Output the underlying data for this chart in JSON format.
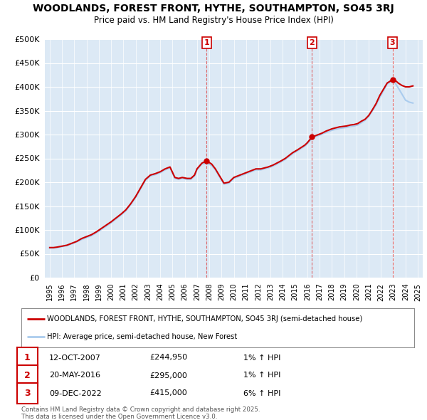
{
  "title": "WOODLANDS, FOREST FRONT, HYTHE, SOUTHAMPTON, SO45 3RJ",
  "subtitle": "Price paid vs. HM Land Registry's House Price Index (HPI)",
  "ylim": [
    0,
    500000
  ],
  "yticks": [
    0,
    50000,
    100000,
    150000,
    200000,
    250000,
    300000,
    350000,
    400000,
    450000,
    500000
  ],
  "xlim_start": 1994.6,
  "xlim_end": 2025.4,
  "background_color": "#dce9f5",
  "grid_color": "#ffffff",
  "sale_points": [
    {
      "label": "1",
      "year": 2007.79,
      "price": 244950,
      "date": "12-OCT-2007",
      "hpi_pct": "1%"
    },
    {
      "label": "2",
      "year": 2016.38,
      "price": 295000,
      "date": "20-MAY-2016",
      "hpi_pct": "1%"
    },
    {
      "label": "3",
      "year": 2022.94,
      "price": 415000,
      "date": "09-DEC-2022",
      "hpi_pct": "6%"
    }
  ],
  "red_line_color": "#cc0000",
  "blue_line_color": "#aaccee",
  "dashed_line_color": "#dd4444",
  "legend_label_red": "WOODLANDS, FOREST FRONT, HYTHE, SOUTHAMPTON, SO45 3RJ (semi-detached house)",
  "legend_label_blue": "HPI: Average price, semi-detached house, New Forest",
  "footer": "Contains HM Land Registry data © Crown copyright and database right 2025.\nThis data is licensed under the Open Government Licence v3.0.",
  "red_data_x": [
    1995.0,
    1995.3,
    1995.6,
    1996.0,
    1996.4,
    1996.8,
    1997.2,
    1997.6,
    1998.0,
    1998.4,
    1998.8,
    1999.2,
    1999.6,
    2000.0,
    2000.4,
    2000.8,
    2001.2,
    2001.6,
    2002.0,
    2002.4,
    2002.8,
    2003.2,
    2003.6,
    2004.0,
    2004.4,
    2004.8,
    2005.2,
    2005.5,
    2005.8,
    2006.2,
    2006.5,
    2006.8,
    2007.0,
    2007.4,
    2007.79,
    2008.2,
    2008.5,
    2008.8,
    2009.2,
    2009.6,
    2010.0,
    2010.4,
    2010.8,
    2011.2,
    2011.5,
    2011.8,
    2012.2,
    2012.5,
    2012.8,
    2013.2,
    2013.5,
    2013.8,
    2014.2,
    2014.5,
    2014.8,
    2015.2,
    2015.5,
    2015.8,
    2016.0,
    2016.38,
    2016.6,
    2016.9,
    2017.2,
    2017.5,
    2017.8,
    2018.0,
    2018.3,
    2018.6,
    2018.9,
    2019.2,
    2019.5,
    2019.8,
    2020.1,
    2020.4,
    2020.7,
    2021.0,
    2021.3,
    2021.6,
    2021.9,
    2022.2,
    2022.5,
    2022.94,
    2023.1,
    2023.4,
    2023.7,
    2024.0,
    2024.3,
    2024.6
  ],
  "red_data_y": [
    63000,
    63000,
    64000,
    66000,
    68000,
    72000,
    76000,
    82000,
    86000,
    90000,
    96000,
    103000,
    110000,
    117000,
    125000,
    133000,
    142000,
    155000,
    170000,
    188000,
    206000,
    215000,
    218000,
    222000,
    228000,
    232000,
    210000,
    208000,
    210000,
    208000,
    208000,
    215000,
    228000,
    240000,
    244950,
    238000,
    228000,
    215000,
    198000,
    200000,
    210000,
    214000,
    218000,
    222000,
    225000,
    228000,
    228000,
    230000,
    232000,
    236000,
    240000,
    244000,
    250000,
    256000,
    262000,
    268000,
    273000,
    278000,
    283000,
    295000,
    297000,
    300000,
    303000,
    307000,
    310000,
    312000,
    314000,
    316000,
    317000,
    318000,
    320000,
    321000,
    323000,
    328000,
    332000,
    340000,
    352000,
    365000,
    382000,
    395000,
    408000,
    415000,
    415000,
    408000,
    403000,
    400000,
    400000,
    402000
  ],
  "blue_data_x": [
    1995.0,
    1995.3,
    1995.6,
    1996.0,
    1996.4,
    1996.8,
    1997.2,
    1997.6,
    1998.0,
    1998.4,
    1998.8,
    1999.2,
    1999.6,
    2000.0,
    2000.4,
    2000.8,
    2001.2,
    2001.6,
    2002.0,
    2002.4,
    2002.8,
    2003.2,
    2003.6,
    2004.0,
    2004.4,
    2004.8,
    2005.2,
    2005.5,
    2005.8,
    2006.2,
    2006.5,
    2006.8,
    2007.0,
    2007.4,
    2007.8,
    2008.2,
    2008.5,
    2008.8,
    2009.2,
    2009.6,
    2010.0,
    2010.4,
    2010.8,
    2011.2,
    2011.5,
    2011.8,
    2012.2,
    2012.5,
    2012.8,
    2013.2,
    2013.5,
    2013.8,
    2014.2,
    2014.5,
    2014.8,
    2015.2,
    2015.5,
    2015.8,
    2016.0,
    2016.4,
    2016.6,
    2016.9,
    2017.2,
    2017.5,
    2017.8,
    2018.0,
    2018.3,
    2018.6,
    2018.9,
    2019.2,
    2019.5,
    2019.8,
    2020.1,
    2020.4,
    2020.7,
    2021.0,
    2021.3,
    2021.6,
    2021.9,
    2022.2,
    2022.5,
    2022.9,
    2023.1,
    2023.4,
    2023.7,
    2024.0,
    2024.3,
    2024.6
  ],
  "blue_data_y": [
    62000,
    62000,
    63000,
    65000,
    67000,
    71000,
    75000,
    80000,
    84000,
    88000,
    94000,
    101000,
    108000,
    115000,
    123000,
    131000,
    140000,
    153000,
    168000,
    186000,
    204000,
    213000,
    216000,
    220000,
    226000,
    230000,
    208000,
    206000,
    208000,
    206000,
    206000,
    213000,
    226000,
    238000,
    240000,
    235000,
    226000,
    213000,
    196000,
    198000,
    208000,
    212000,
    216000,
    220000,
    223000,
    226000,
    226000,
    228000,
    230000,
    234000,
    238000,
    242000,
    248000,
    254000,
    260000,
    266000,
    271000,
    276000,
    281000,
    293000,
    295000,
    298000,
    301000,
    304000,
    307000,
    309000,
    311000,
    313000,
    314000,
    315000,
    317000,
    318000,
    320000,
    325000,
    330000,
    338000,
    350000,
    362000,
    378000,
    392000,
    406000,
    412000,
    410000,
    398000,
    385000,
    372000,
    368000,
    366000
  ]
}
